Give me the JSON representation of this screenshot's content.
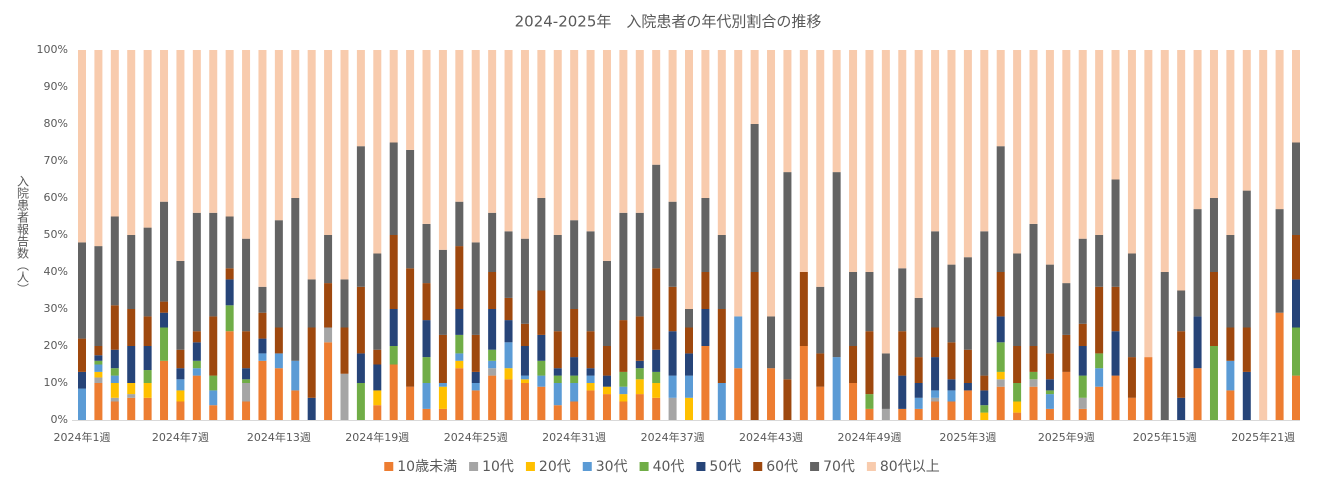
{
  "chart_data": {
    "type": "stacked_bar",
    "title": "2024-2025年　入院患者の年代別割合の推移",
    "y_label": "入院患者報告数（人）",
    "categories": [
      "2024年1週",
      null,
      null,
      null,
      null,
      null,
      "2024年7週",
      null,
      null,
      null,
      null,
      null,
      "2024年13週",
      null,
      null,
      null,
      null,
      null,
      "2024年19週",
      null,
      null,
      null,
      null,
      null,
      "2024年25週",
      null,
      null,
      null,
      null,
      null,
      "2024年31週",
      null,
      null,
      null,
      null,
      null,
      "2024年37週",
      null,
      null,
      null,
      null,
      null,
      "2024年43週",
      null,
      null,
      null,
      null,
      null,
      "2024年49週",
      null,
      null,
      null,
      null,
      null,
      "2025年3週",
      null,
      null,
      null,
      null,
      null,
      "2025年9週",
      null,
      null,
      null,
      null,
      null,
      "2025年15週",
      null,
      null,
      null,
      null,
      null,
      "2025年21週",
      null,
      null
    ],
    "ylim": [
      0,
      100
    ],
    "yticks": [
      {
        "value": 0,
        "label": "0%"
      },
      {
        "value": 10,
        "label": "10%"
      },
      {
        "value": 20,
        "label": "20%"
      },
      {
        "value": 30,
        "label": "30%"
      },
      {
        "value": 40,
        "label": "40%"
      },
      {
        "value": 50,
        "label": "50%"
      },
      {
        "value": 60,
        "label": "60%"
      },
      {
        "value": 70,
        "label": "70%"
      },
      {
        "value": 80,
        "label": "80%"
      },
      {
        "value": 90,
        "label": "90%"
      },
      {
        "value": 100,
        "label": "100%"
      }
    ],
    "grid": false,
    "legend": "bottom",
    "series": [
      {
        "name": "10歳未満",
        "color": "#ed7d31",
        "values": [
          0,
          10,
          5,
          6,
          6,
          16,
          5,
          12,
          4,
          24,
          5,
          16,
          14,
          8,
          0,
          21,
          0,
          0,
          4,
          15,
          9,
          3,
          3,
          14,
          8,
          12,
          11,
          10,
          9,
          4,
          5,
          8,
          7,
          5,
          7,
          6,
          0,
          0,
          20,
          0,
          14,
          0,
          14,
          0,
          20,
          9,
          0,
          10,
          3,
          0,
          3,
          3,
          5,
          5,
          8,
          0,
          9,
          2,
          9,
          3,
          13,
          3,
          9,
          12,
          6,
          17,
          0,
          0,
          14,
          0,
          8,
          0,
          0,
          29,
          12
        ]
      },
      {
        "name": "10代",
        "color": "#a5a5a5",
        "values": [
          0,
          1.5,
          1,
          1,
          0,
          0,
          0,
          0,
          0,
          0,
          5,
          0,
          0,
          0,
          0,
          4,
          12.5,
          0,
          0,
          0,
          0,
          0,
          0,
          0,
          0,
          2,
          0,
          0,
          0,
          0,
          0,
          0,
          0,
          0,
          0,
          0,
          6,
          0,
          0,
          0,
          0,
          0,
          0,
          0,
          0,
          0,
          0,
          0,
          0,
          3,
          0,
          0,
          1,
          0,
          0,
          0,
          2,
          0,
          2,
          0,
          0,
          3,
          0,
          0,
          0,
          0,
          0,
          0,
          0,
          0,
          0,
          0,
          0,
          0,
          0
        ]
      },
      {
        "name": "20代",
        "color": "#ffc000",
        "values": [
          0,
          1.5,
          4,
          3,
          4,
          0,
          3,
          0,
          0,
          0,
          0,
          0,
          0,
          0,
          0,
          0,
          0,
          0,
          4,
          0,
          0,
          0,
          6,
          2,
          0,
          0,
          3,
          1,
          0,
          0,
          0,
          2,
          2,
          2,
          4,
          4,
          0,
          6,
          0,
          0,
          0,
          0,
          0,
          0,
          0,
          0,
          0,
          0,
          0,
          0,
          0,
          0,
          0,
          0,
          0,
          2,
          2,
          3,
          0,
          0,
          0,
          0,
          0,
          0,
          0,
          0,
          0,
          0,
          0,
          0,
          0,
          0,
          0,
          0,
          0
        ]
      },
      {
        "name": "30代",
        "color": "#5b9bd5",
        "values": [
          8.5,
          2,
          2,
          0,
          0,
          0,
          3,
          2,
          4,
          0,
          0,
          2,
          4,
          8,
          0,
          0,
          0,
          0,
          0,
          0,
          0,
          7,
          1,
          2,
          2,
          2,
          7,
          1,
          3,
          6,
          5,
          2,
          0,
          2,
          0,
          0,
          6,
          6,
          0,
          10,
          14,
          0,
          0,
          0,
          0,
          0,
          17,
          0,
          0,
          0,
          0,
          3,
          2,
          3,
          0,
          0,
          0,
          0,
          0,
          4,
          0,
          0,
          5,
          0,
          0,
          0,
          0,
          0,
          0,
          0,
          8,
          0,
          0,
          0,
          0
        ]
      },
      {
        "name": "40代",
        "color": "#70ad47",
        "values": [
          0,
          1,
          2,
          0,
          3.5,
          9,
          0,
          2,
          4,
          7,
          1,
          0,
          0,
          0,
          0,
          0,
          0,
          10,
          0,
          5,
          0,
          7,
          0,
          5,
          0,
          3,
          0,
          0,
          4,
          2,
          2,
          0,
          0,
          4,
          3,
          3,
          0,
          0,
          0,
          0,
          0,
          0,
          0,
          0,
          0,
          0,
          0,
          0,
          4,
          0,
          0,
          0,
          0,
          0,
          0,
          2,
          8,
          5,
          2,
          1,
          0,
          6,
          4,
          0,
          0,
          0,
          0,
          0,
          0,
          20,
          0,
          0,
          0,
          0,
          13
        ]
      },
      {
        "name": "50代",
        "color": "#264478",
        "values": [
          4.5,
          1.5,
          5,
          10,
          6.5,
          4,
          3,
          5,
          0,
          7,
          3,
          4,
          0,
          0,
          6,
          0,
          0,
          8,
          7,
          10,
          0,
          10,
          0,
          7,
          3,
          11,
          6,
          8,
          7,
          2,
          5,
          2,
          3,
          0,
          2,
          6,
          12,
          6,
          10,
          0,
          0,
          0,
          0,
          0,
          0,
          0,
          0,
          0,
          0,
          0,
          9,
          4,
          9,
          3,
          2,
          4,
          7,
          0,
          0,
          3,
          0,
          8,
          0,
          12,
          0,
          0,
          0,
          6,
          14,
          0,
          0,
          13,
          0,
          0,
          13
        ]
      },
      {
        "name": "60代",
        "color": "#9e480e",
        "values": [
          9,
          2.5,
          12,
          10,
          8,
          3,
          5,
          3,
          16,
          3,
          10,
          7,
          7,
          0,
          19,
          12,
          12.5,
          18,
          4,
          20,
          32,
          10,
          13,
          17,
          10,
          10,
          6,
          6,
          12,
          10,
          13,
          10,
          8,
          14,
          12,
          22,
          12,
          7,
          10,
          20,
          0,
          40,
          0,
          11,
          20,
          9,
          0,
          10,
          17,
          0,
          12,
          7,
          8,
          10,
          9,
          4,
          12,
          10,
          7,
          7,
          10,
          6,
          18,
          12,
          11,
          0,
          0,
          18,
          0,
          20,
          9,
          12,
          0,
          0,
          12
        ]
      },
      {
        "name": "70代",
        "color": "#636363",
        "values": [
          26,
          27,
          24,
          20,
          24,
          27,
          24,
          32,
          28,
          14,
          25,
          7,
          29,
          44,
          13,
          13,
          13,
          38,
          26,
          25,
          32,
          16,
          23,
          12,
          25,
          16,
          18,
          23,
          25,
          26,
          24,
          27,
          23,
          29,
          28,
          28,
          23,
          5,
          20,
          20,
          0,
          40,
          14,
          56,
          0,
          18,
          50,
          20,
          16,
          15,
          17,
          16,
          26,
          21,
          25,
          39,
          34,
          25,
          33,
          24,
          14,
          23,
          14,
          29,
          28,
          0,
          40,
          11,
          29,
          20,
          25,
          37,
          0,
          28,
          25
        ]
      },
      {
        "name": "80代以上",
        "color": "#f8cbad",
        "values": [
          52,
          53,
          45,
          50,
          48,
          41,
          57,
          44,
          44,
          45,
          51,
          64,
          46,
          40,
          62,
          50,
          62,
          26,
          55,
          25,
          27,
          47,
          54,
          41,
          52,
          44,
          49,
          51,
          40,
          50,
          46,
          49,
          57,
          44,
          44,
          31,
          41,
          70,
          40,
          50,
          72,
          20,
          72,
          33,
          60,
          64,
          33,
          60,
          60,
          82,
          59,
          67,
          49,
          58,
          56,
          49,
          26,
          55,
          47,
          58,
          63,
          51,
          50,
          35,
          55,
          83,
          60,
          65,
          43,
          40,
          50,
          38,
          100,
          43,
          25
        ]
      }
    ]
  }
}
